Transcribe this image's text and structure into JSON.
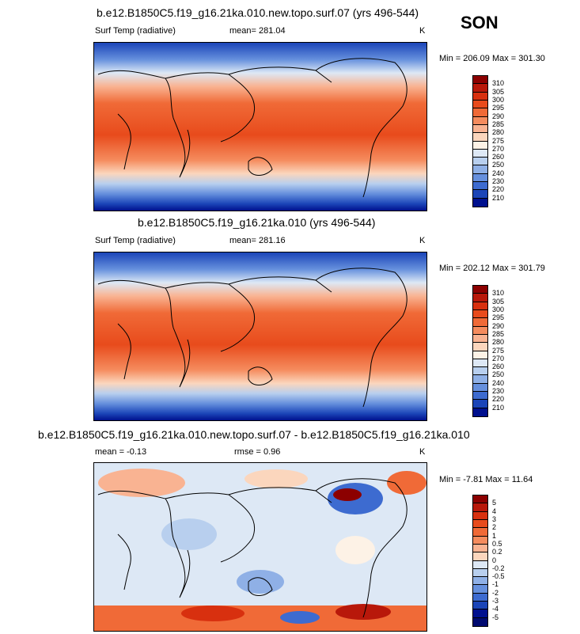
{
  "season": "SON",
  "chart_data": [
    {
      "type": "heatmap",
      "title": "b.e12.B1850C5.f19_g16.21ka.010.new.topo.surf.07 (yrs 496-544)",
      "variable": "Surf Temp (radiative)",
      "mean_label": "mean= 281.04",
      "units": "K",
      "minmax_label": "Min = 206.09 Max = 301.30",
      "colorbar_labels": [
        "310",
        "305",
        "300",
        "295",
        "290",
        "285",
        "280",
        "275",
        "270",
        "260",
        "250",
        "240",
        "230",
        "220",
        "210"
      ],
      "colors": [
        "#8c0000",
        "#b8180a",
        "#d8300f",
        "#e84b1c",
        "#f06a37",
        "#f58c5e",
        "#f9b392",
        "#fbd6bd",
        "#fdf2e6",
        "#dde8f5",
        "#b8cfee",
        "#8fb0e6",
        "#6690dd",
        "#3d6bd0",
        "#1b45b8",
        "#00108e"
      ]
    },
    {
      "type": "heatmap",
      "title": "b.e12.B1850C5.f19_g16.21ka.010 (yrs 496-544)",
      "variable": "Surf Temp (radiative)",
      "mean_label": "mean= 281.16",
      "units": "K",
      "minmax_label": "Min = 202.12 Max = 301.79",
      "colorbar_labels": [
        "310",
        "305",
        "300",
        "295",
        "290",
        "285",
        "280",
        "275",
        "270",
        "260",
        "250",
        "240",
        "230",
        "220",
        "210"
      ],
      "colors": [
        "#8c0000",
        "#b8180a",
        "#d8300f",
        "#e84b1c",
        "#f06a37",
        "#f58c5e",
        "#f9b392",
        "#fbd6bd",
        "#fdf2e6",
        "#dde8f5",
        "#b8cfee",
        "#8fb0e6",
        "#6690dd",
        "#3d6bd0",
        "#1b45b8",
        "#00108e"
      ]
    },
    {
      "type": "heatmap",
      "title": "b.e12.B1850C5.f19_g16.21ka.010.new.topo.surf.07 - b.e12.B1850C5.f19_g16.21ka.010",
      "mean_label": "mean =  -0.13",
      "rmse_label": "rmse =   0.96",
      "units": "K",
      "minmax_label": "Min = -7.81 Max = 11.64",
      "colorbar_labels": [
        "5",
        "4",
        "3",
        "2",
        "1",
        "0.5",
        "0.2",
        "0",
        "-0.2",
        "-0.5",
        "-1",
        "-2",
        "-3",
        "-4",
        "-5"
      ],
      "colors": [
        "#8c0000",
        "#b8180a",
        "#d8300f",
        "#e84b1c",
        "#f06a37",
        "#f58c5e",
        "#f9b392",
        "#fbd6bd",
        "#dde8f5",
        "#b8cfee",
        "#8fb0e6",
        "#6690dd",
        "#3d6bd0",
        "#1b45b8",
        "#00108e",
        "#000a70"
      ]
    }
  ]
}
